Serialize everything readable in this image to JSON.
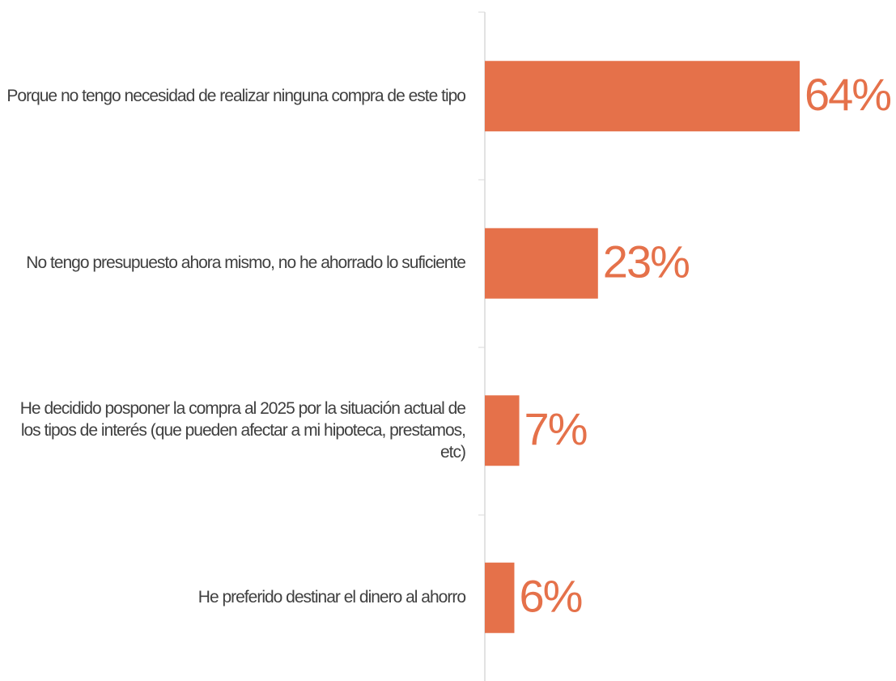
{
  "chart_data": {
    "type": "bar",
    "orientation": "horizontal",
    "categories": [
      "Porque no tengo necesidad de realizar ninguna compra de este tipo",
      "No tengo presupuesto ahora mismo, no he ahorrado lo suficiente",
      "He decidido posponer la compra al 2025 por la situación actual de los tipos de interés (que pueden afectar a mi hipoteca, prestamos, etc)",
      "He preferido destinar el dinero al ahorro"
    ],
    "values": [
      64,
      23,
      7,
      6
    ],
    "value_labels": [
      "64%",
      "23%",
      "7%",
      "6%"
    ],
    "color": "#e5714a"
  }
}
